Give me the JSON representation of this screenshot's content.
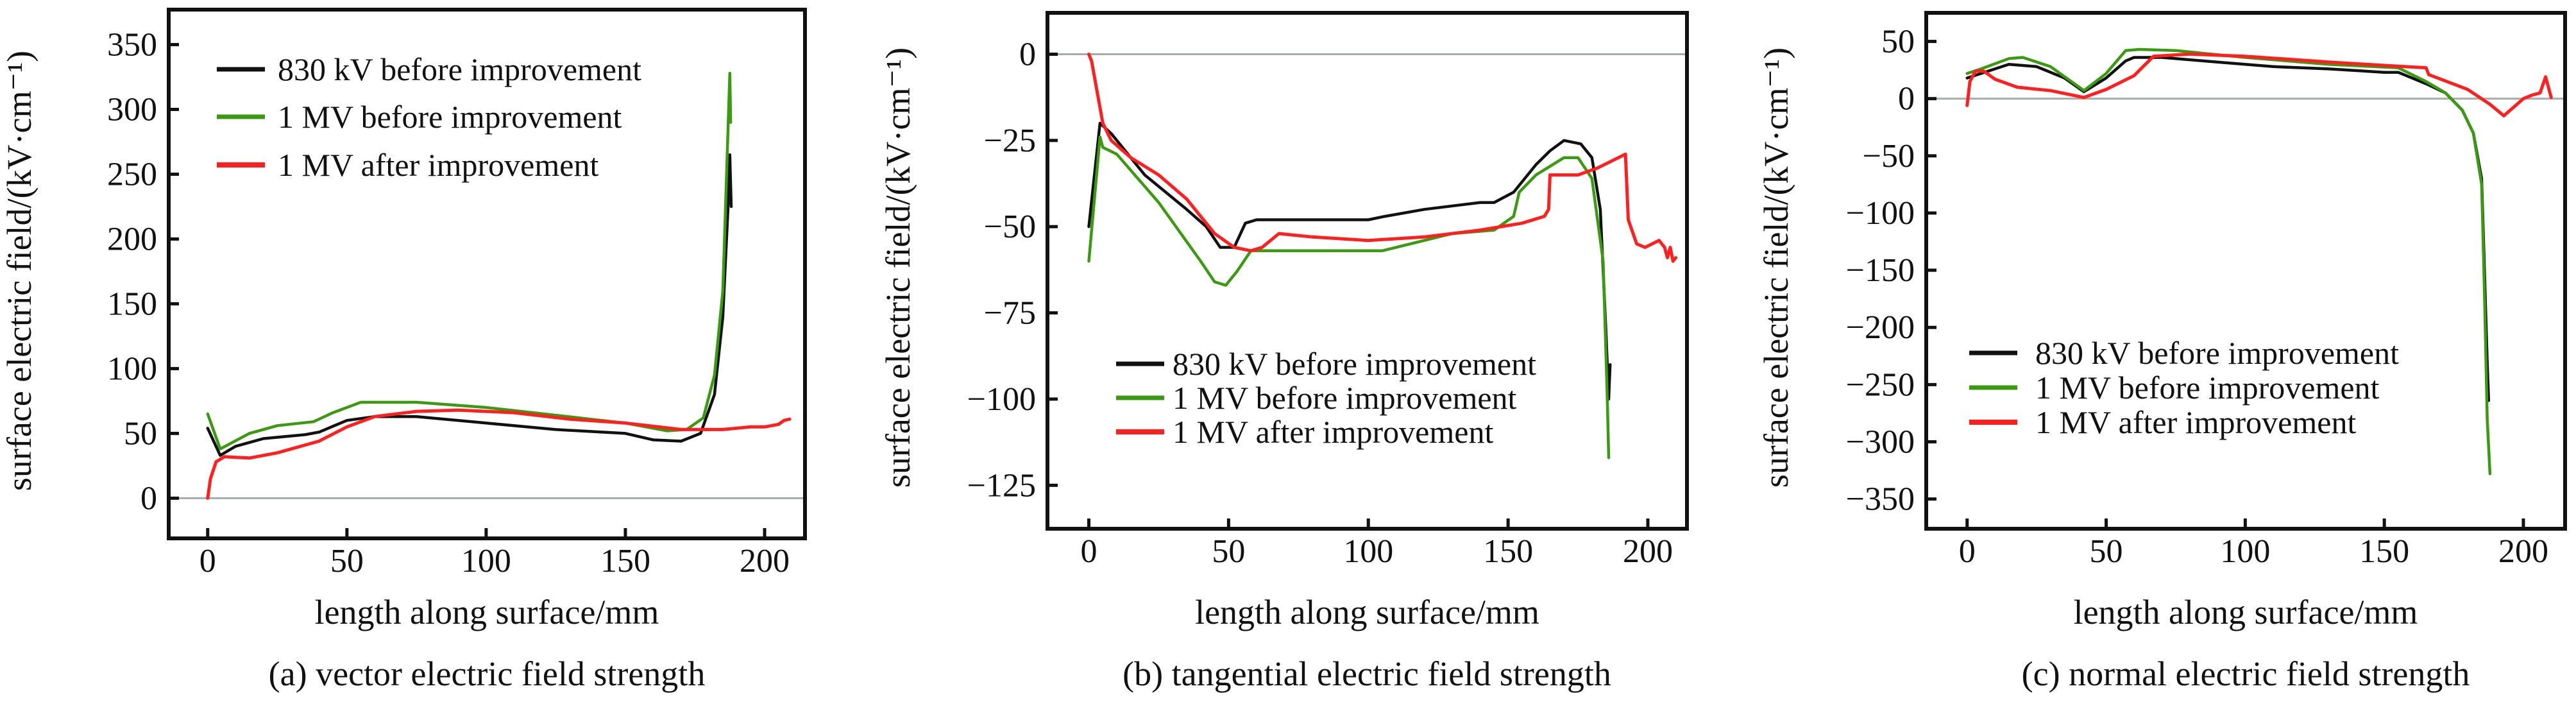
{
  "figure": {
    "series_styles": [
      {
        "name": "830 kV before improvement",
        "color": "#111111"
      },
      {
        "name": "1 MV before improvement",
        "color": "#3a9a10"
      },
      {
        "name": "1 MV after improvement",
        "color": "#ff1f1f"
      }
    ],
    "zero_line_color": "#a6aaaa"
  },
  "chart_data": [
    {
      "type": "line",
      "panel": "a",
      "title": "(a) vector electric field strength",
      "xlabel": "length along surface/mm",
      "ylabel": "surface electric field/(kV·cm⁻¹)",
      "xlim": [
        -14,
        214.5
      ],
      "ylim": [
        -31,
        377
      ],
      "xticks": [
        0,
        50,
        100,
        150,
        200
      ],
      "yticks": [
        0,
        50,
        100,
        150,
        200,
        250,
        300,
        350
      ],
      "grid": false,
      "zero_line": true,
      "legend": {
        "position": "top-left",
        "entries": [
          "830 kV before improvement",
          "1 MV before improvement",
          "1 MV after improvement"
        ]
      },
      "series": [
        {
          "name": "830 kV before improvement",
          "points": [
            [
              0,
              54
            ],
            [
              4.5,
              33
            ],
            [
              10,
              40
            ],
            [
              20,
              46
            ],
            [
              35,
              49
            ],
            [
              40,
              51
            ],
            [
              50,
              60
            ],
            [
              60,
              63
            ],
            [
              75,
              63
            ],
            [
              100,
              58
            ],
            [
              125,
              53
            ],
            [
              150,
              50
            ],
            [
              160,
              45
            ],
            [
              170,
              44
            ],
            [
              177,
              50
            ],
            [
              182,
              80
            ],
            [
              185,
              140
            ],
            [
              187,
              230
            ],
            [
              187.5,
              265
            ],
            [
              188,
              225
            ]
          ]
        },
        {
          "name": "1 MV before improvement",
          "points": [
            [
              0,
              65
            ],
            [
              4.5,
              38
            ],
            [
              15,
              50
            ],
            [
              25,
              56
            ],
            [
              38,
              59
            ],
            [
              45,
              66
            ],
            [
              55,
              74
            ],
            [
              75,
              74
            ],
            [
              100,
              70
            ],
            [
              125,
              64
            ],
            [
              150,
              58
            ],
            [
              165,
              52
            ],
            [
              172,
              53
            ],
            [
              178,
              62
            ],
            [
              182,
              95
            ],
            [
              185,
              160
            ],
            [
              186.5,
              260
            ],
            [
              187.5,
              328
            ],
            [
              187.8,
              290
            ]
          ]
        },
        {
          "name": "1 MV after improvement",
          "points": [
            [
              0,
              0
            ],
            [
              1,
              15
            ],
            [
              3,
              28
            ],
            [
              6,
              32
            ],
            [
              15,
              31
            ],
            [
              25,
              35
            ],
            [
              40,
              44
            ],
            [
              50,
              55
            ],
            [
              60,
              63
            ],
            [
              75,
              67
            ],
            [
              90,
              68
            ],
            [
              110,
              66
            ],
            [
              130,
              61
            ],
            [
              150,
              58
            ],
            [
              170,
              53
            ],
            [
              185,
              53
            ],
            [
              195,
              55
            ],
            [
              200,
              55
            ],
            [
              205,
              57
            ],
            [
              207,
              60
            ],
            [
              209,
              61
            ]
          ]
        }
      ]
    },
    {
      "type": "line",
      "panel": "b",
      "title": "(b) tangential electric field strength",
      "xlabel": "length along surface/mm",
      "ylabel": "surface electric field/(kV·cm⁻¹)",
      "xlim": [
        -14.8,
        214
      ],
      "ylim": [
        -137.6,
        12
      ],
      "xticks": [
        0,
        50,
        100,
        150,
        200
      ],
      "yticks": [
        0,
        -25,
        -50,
        -75,
        -100,
        -125
      ],
      "grid": false,
      "zero_line": true,
      "legend": {
        "position": "bottom-center",
        "entries": [
          "830 kV before improvement",
          "1 MV before improvement",
          "1 MV after improvement"
        ]
      },
      "series": [
        {
          "name": "830 kV before improvement",
          "points": [
            [
              0,
              -50
            ],
            [
              4,
              -20
            ],
            [
              8,
              -23
            ],
            [
              20,
              -35
            ],
            [
              35,
              -45
            ],
            [
              42,
              -50
            ],
            [
              47,
              -56
            ],
            [
              52,
              -56
            ],
            [
              56,
              -49
            ],
            [
              60,
              -48
            ],
            [
              85,
              -48
            ],
            [
              100,
              -48
            ],
            [
              106,
              -47
            ],
            [
              120,
              -45
            ],
            [
              140,
              -43
            ],
            [
              145,
              -43
            ],
            [
              152,
              -40
            ],
            [
              160,
              -32
            ],
            [
              165,
              -28
            ],
            [
              170,
              -25
            ],
            [
              176,
              -26
            ],
            [
              180,
              -30
            ],
            [
              183,
              -45
            ],
            [
              185,
              -80
            ],
            [
              186,
              -100
            ],
            [
              186.5,
              -90
            ]
          ]
        },
        {
          "name": "1 MV before improvement",
          "points": [
            [
              0,
              -60
            ],
            [
              4,
              -24
            ],
            [
              5,
              -27
            ],
            [
              10,
              -29
            ],
            [
              25,
              -43
            ],
            [
              40,
              -60
            ],
            [
              45,
              -66
            ],
            [
              49,
              -67
            ],
            [
              53,
              -63
            ],
            [
              58,
              -57
            ],
            [
              80,
              -57
            ],
            [
              105,
              -57
            ],
            [
              115,
              -55
            ],
            [
              130,
              -52
            ],
            [
              145,
              -51
            ],
            [
              152,
              -47
            ],
            [
              154,
              -40
            ],
            [
              160,
              -35
            ],
            [
              170,
              -30
            ],
            [
              175,
              -30
            ],
            [
              180,
              -36
            ],
            [
              184,
              -60
            ],
            [
              185.5,
              -100
            ],
            [
              186,
              -117
            ]
          ]
        },
        {
          "name": "1 MV after improvement",
          "points": [
            [
              0,
              0
            ],
            [
              1,
              -2
            ],
            [
              5,
              -20
            ],
            [
              8,
              -25
            ],
            [
              15,
              -30
            ],
            [
              25,
              -35
            ],
            [
              35,
              -42
            ],
            [
              45,
              -52
            ],
            [
              52,
              -56
            ],
            [
              58,
              -57
            ],
            [
              62,
              -56
            ],
            [
              68,
              -52
            ],
            [
              80,
              -53
            ],
            [
              100,
              -54
            ],
            [
              120,
              -53
            ],
            [
              140,
              -51
            ],
            [
              155,
              -49
            ],
            [
              163,
              -47
            ],
            [
              164.5,
              -45
            ],
            [
              165,
              -35
            ],
            [
              175,
              -35
            ],
            [
              182,
              -33
            ],
            [
              192,
              -29
            ],
            [
              193,
              -48
            ],
            [
              196,
              -55
            ],
            [
              199,
              -56
            ],
            [
              204,
              -54
            ],
            [
              206,
              -56
            ],
            [
              207,
              -59
            ],
            [
              208,
              -56
            ],
            [
              209,
              -60
            ],
            [
              210,
              -59
            ]
          ]
        }
      ]
    },
    {
      "type": "line",
      "panel": "c",
      "title": "(c) normal electric field strength",
      "xlabel": "length along surface/mm",
      "ylabel": "surface electric field/(kV·cm⁻¹)",
      "xlim": [
        -14.7,
        215
      ],
      "ylim": [
        -376,
        75
      ],
      "xticks": [
        0,
        50,
        100,
        150,
        200
      ],
      "yticks": [
        50,
        0,
        -50,
        -100,
        -150,
        -200,
        -250,
        -300,
        -350
      ],
      "grid": false,
      "zero_line": true,
      "legend": {
        "position": "bottom-left",
        "entries": [
          "830 kV before improvement",
          "1 MV before improvement",
          "1 MV after improvement"
        ]
      },
      "series": [
        {
          "name": "830 kV before improvement",
          "points": [
            [
              0,
              18
            ],
            [
              5,
              22
            ],
            [
              15,
              30
            ],
            [
              25,
              28
            ],
            [
              35,
              18
            ],
            [
              42,
              6
            ],
            [
              50,
              18
            ],
            [
              57,
              33
            ],
            [
              60,
              36
            ],
            [
              70,
              36
            ],
            [
              90,
              32
            ],
            [
              110,
              28
            ],
            [
              130,
              26
            ],
            [
              150,
              23
            ],
            [
              155,
              23
            ],
            [
              165,
              13
            ],
            [
              172,
              5
            ],
            [
              178,
              -10
            ],
            [
              182,
              -30
            ],
            [
              185,
              -70
            ],
            [
              186,
              -150
            ],
            [
              187,
              -230
            ],
            [
              187.5,
              -264
            ]
          ]
        },
        {
          "name": "1 MV before improvement",
          "points": [
            [
              0,
              22
            ],
            [
              5,
              26
            ],
            [
              15,
              35
            ],
            [
              20,
              36
            ],
            [
              30,
              28
            ],
            [
              42,
              7
            ],
            [
              50,
              22
            ],
            [
              57,
              42
            ],
            [
              62,
              43
            ],
            [
              75,
              42
            ],
            [
              100,
              36
            ],
            [
              130,
              30
            ],
            [
              155,
              27
            ],
            [
              165,
              15
            ],
            [
              172,
              5
            ],
            [
              178,
              -10
            ],
            [
              182,
              -30
            ],
            [
              185,
              -75
            ],
            [
              186,
              -170
            ],
            [
              187,
              -280
            ],
            [
              188,
              -328
            ]
          ]
        },
        {
          "name": "1 MV after improvement",
          "points": [
            [
              0,
              -6
            ],
            [
              1,
              15
            ],
            [
              3,
              24
            ],
            [
              6,
              24
            ],
            [
              10,
              17
            ],
            [
              18,
              10
            ],
            [
              30,
              7
            ],
            [
              42,
              1
            ],
            [
              50,
              8
            ],
            [
              60,
              20
            ],
            [
              67,
              37
            ],
            [
              80,
              39
            ],
            [
              100,
              37
            ],
            [
              130,
              32
            ],
            [
              150,
              29
            ],
            [
              165,
              27
            ],
            [
              166,
              21
            ],
            [
              180,
              8
            ],
            [
              188,
              -5
            ],
            [
              193,
              -15
            ],
            [
              200,
              0
            ],
            [
              203,
              3
            ],
            [
              206,
              5
            ],
            [
              208,
              19
            ],
            [
              209,
              10
            ],
            [
              210,
              1
            ]
          ]
        }
      ]
    }
  ]
}
